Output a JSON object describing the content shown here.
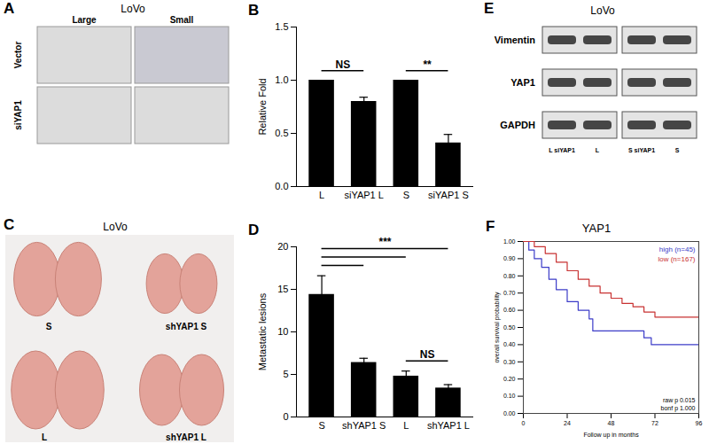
{
  "chart_data": [
    {
      "letter": "B",
      "type": "bar",
      "ylabel": "Relative Fold",
      "color": "#000000",
      "categories": [
        "L",
        "siYAP1 L",
        "S",
        "siYAP1 S"
      ],
      "values": [
        1.0,
        0.8,
        1.0,
        0.41
      ],
      "errors": [
        0,
        0.04,
        0,
        0.08
      ],
      "ylim": [
        0,
        1.5
      ],
      "yticks": [
        {
          "value": 0,
          "label": "0.0"
        },
        0.5,
        {
          "value": 1,
          "label": "1.0"
        },
        1.5
      ],
      "annotations": [
        {
          "text": "NS",
          "pairs": [
            [
              "L",
              "siYAP1 L"
            ]
          ]
        },
        {
          "text": "**",
          "pairs": [
            [
              "S",
              "siYAP1 S"
            ]
          ]
        }
      ]
    },
    {
      "letter": "D",
      "type": "bar",
      "ylabel": "Metastatic lesions",
      "color": "#000000",
      "categories": [
        "S",
        "shYAP1 S",
        "L",
        "shYAP1 L"
      ],
      "values": [
        14.4,
        6.4,
        4.8,
        3.4
      ],
      "errors": [
        2.2,
        0.5,
        0.6,
        0.4
      ],
      "ylim": [
        0,
        20
      ],
      "yticks": [
        0,
        5,
        10,
        15,
        20
      ],
      "annotations": [
        {
          "text": "***",
          "pairs": [
            [
              "S",
              "shYAP1 S"
            ],
            [
              "S",
              "L"
            ],
            [
              "S",
              "shYAP1 L"
            ]
          ]
        },
        {
          "text": "NS",
          "pairs": [
            [
              "L",
              "shYAP1 L"
            ]
          ]
        }
      ]
    },
    {
      "letter": "F",
      "type": "line",
      "title": "YAP1",
      "xlabel": "Follow up in months",
      "ylabel": "overall survival probability",
      "legend": "top-right",
      "series": [
        {
          "name": "high (n=45)",
          "color": "#3c3cc8",
          "x": [
            0,
            3,
            6,
            10,
            14,
            18,
            24,
            30,
            36,
            38,
            60,
            66,
            70,
            96
          ],
          "values": [
            1.0,
            0.95,
            0.9,
            0.85,
            0.78,
            0.72,
            0.65,
            0.6,
            0.55,
            0.48,
            0.48,
            0.44,
            0.4,
            0.4
          ]
        },
        {
          "name": "low (n=167)",
          "color": "#c83232",
          "x": [
            0,
            6,
            12,
            18,
            24,
            30,
            36,
            42,
            48,
            54,
            60,
            66,
            72,
            96
          ],
          "values": [
            1.0,
            0.97,
            0.93,
            0.88,
            0.83,
            0.78,
            0.74,
            0.7,
            0.67,
            0.64,
            0.62,
            0.59,
            0.56,
            0.56
          ]
        }
      ],
      "xlim": [
        0,
        96
      ],
      "xticks": [
        0,
        24,
        48,
        72,
        96
      ],
      "ylim": [
        0,
        1
      ],
      "yticks": [
        {
          "value": 0,
          "label": "0.00"
        },
        {
          "value": 0.1,
          "label": "0.10"
        },
        {
          "value": 0.2,
          "label": "0.20"
        },
        {
          "value": 0.3,
          "label": "0.30"
        },
        {
          "value": 0.4,
          "label": "0.40"
        },
        {
          "value": 0.5,
          "label": "0.50"
        },
        {
          "value": 0.6,
          "label": "0.60"
        },
        {
          "value": 0.7,
          "label": "0.70"
        },
        {
          "value": 0.8,
          "label": "0.80"
        },
        {
          "value": 0.9,
          "label": "0.90"
        },
        {
          "value": 1,
          "label": "1.00"
        }
      ],
      "annotations": [
        "raw p 0.015",
        "bonf p 1.000"
      ]
    }
  ],
  "panels": {
    "A": {
      "letter": "A",
      "title": "LoVo",
      "columns": [
        "Large",
        "Small"
      ],
      "rows": [
        "Vector",
        "siYAP1"
      ]
    },
    "C": {
      "letter": "C",
      "title": "LoVo",
      "images": [
        "S",
        "shYAP1 S",
        "L",
        "shYAP1 L"
      ]
    },
    "E": {
      "letter": "E",
      "title": "LoVo",
      "proteins": [
        "Vimentin",
        "YAP1",
        "GAPDH"
      ],
      "lanes": [
        "L siYAP1",
        "L",
        "S siYAP1",
        "S"
      ]
    }
  }
}
